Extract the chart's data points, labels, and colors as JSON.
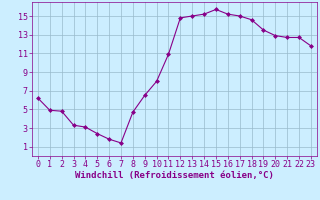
{
  "x": [
    0,
    1,
    2,
    3,
    4,
    5,
    6,
    7,
    8,
    9,
    10,
    11,
    12,
    13,
    14,
    15,
    16,
    17,
    18,
    19,
    20,
    21,
    22,
    23
  ],
  "y": [
    6.2,
    4.9,
    4.8,
    3.3,
    3.1,
    2.4,
    1.8,
    1.4,
    4.7,
    6.5,
    8.0,
    10.9,
    14.8,
    15.0,
    15.2,
    15.7,
    15.2,
    15.0,
    14.6,
    13.5,
    12.9,
    12.7,
    12.7,
    11.8
  ],
  "line_color": "#880088",
  "marker": "D",
  "marker_size": 2.0,
  "bg_color": "#cceeff",
  "grid_color": "#99bbcc",
  "xlabel": "Windchill (Refroidissement éolien,°C)",
  "xlabel_color": "#880088",
  "ylabel_ticks": [
    1,
    3,
    5,
    7,
    9,
    11,
    13,
    15
  ],
  "xlim": [
    -0.5,
    23.5
  ],
  "ylim": [
    0.0,
    16.5
  ],
  "xticks": [
    0,
    1,
    2,
    3,
    4,
    5,
    6,
    7,
    8,
    9,
    10,
    11,
    12,
    13,
    14,
    15,
    16,
    17,
    18,
    19,
    20,
    21,
    22,
    23
  ],
  "tick_color": "#880088",
  "font_size": 6,
  "xlabel_fontsize": 6.5,
  "linewidth": 0.8
}
